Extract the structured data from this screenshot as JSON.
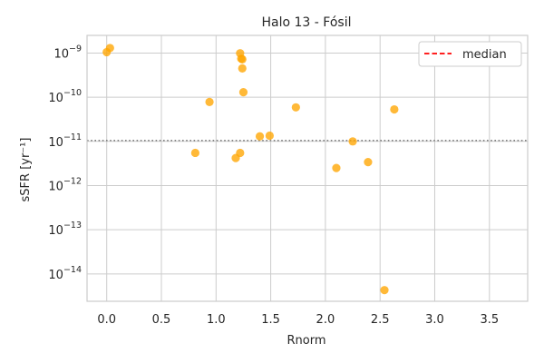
{
  "chart_data": {
    "type": "scatter",
    "title": "Halo 13 - Fósil",
    "xlabel": "Rnorm",
    "ylabel": "sSFR [yr⁻¹]",
    "xlim": [
      -0.18,
      3.85
    ],
    "ylim_log10": [
      -14.62,
      -8.6
    ],
    "y_scale": "log",
    "x_ticks": [
      {
        "value": 0.0,
        "label": "0.0"
      },
      {
        "value": 0.5,
        "label": "0.5"
      },
      {
        "value": 1.0,
        "label": "1.0"
      },
      {
        "value": 1.5,
        "label": "1.5"
      },
      {
        "value": 2.0,
        "label": "2.0"
      },
      {
        "value": 2.5,
        "label": "2.5"
      },
      {
        "value": 3.0,
        "label": "3.0"
      },
      {
        "value": 3.5,
        "label": "3.5"
      }
    ],
    "y_ticks": [
      {
        "exp": -9,
        "base": "10",
        "sup": "−9"
      },
      {
        "exp": -10,
        "base": "10",
        "sup": "−10"
      },
      {
        "exp": -11,
        "base": "10",
        "sup": "−11"
      },
      {
        "exp": -12,
        "base": "10",
        "sup": "−12"
      },
      {
        "exp": -13,
        "base": "10",
        "sup": "−13"
      },
      {
        "exp": -14,
        "base": "10",
        "sup": "−14"
      }
    ],
    "grid": true,
    "median_log10": -10.98,
    "legend": {
      "position": "top-right",
      "entries": [
        {
          "label": "median",
          "color": "#ff0000",
          "style": "dashed"
        }
      ]
    },
    "point_color": "#ffa500",
    "median_color": "#808080",
    "points": [
      {
        "x": 0.0,
        "y": 1.05e-09
      },
      {
        "x": 0.03,
        "y": 1.3e-09
      },
      {
        "x": 0.81,
        "y": 5.5e-12
      },
      {
        "x": 0.94,
        "y": 7.8e-11
      },
      {
        "x": 1.18,
        "y": 4.2e-12
      },
      {
        "x": 1.22,
        "y": 5.5e-12
      },
      {
        "x": 1.22,
        "y": 9.9e-10
      },
      {
        "x": 1.23,
        "y": 7.5e-10
      },
      {
        "x": 1.24,
        "y": 7.2e-10
      },
      {
        "x": 1.24,
        "y": 4.5e-10
      },
      {
        "x": 1.25,
        "y": 1.3e-10
      },
      {
        "x": 1.4,
        "y": 1.3e-11
      },
      {
        "x": 1.49,
        "y": 1.35e-11
      },
      {
        "x": 1.73,
        "y": 5.9e-11
      },
      {
        "x": 2.1,
        "y": 2.5e-12
      },
      {
        "x": 2.25,
        "y": 1e-11
      },
      {
        "x": 2.39,
        "y": 3.4e-12
      },
      {
        "x": 2.54,
        "y": 4.3e-15
      },
      {
        "x": 2.63,
        "y": 5.3e-11
      }
    ]
  }
}
